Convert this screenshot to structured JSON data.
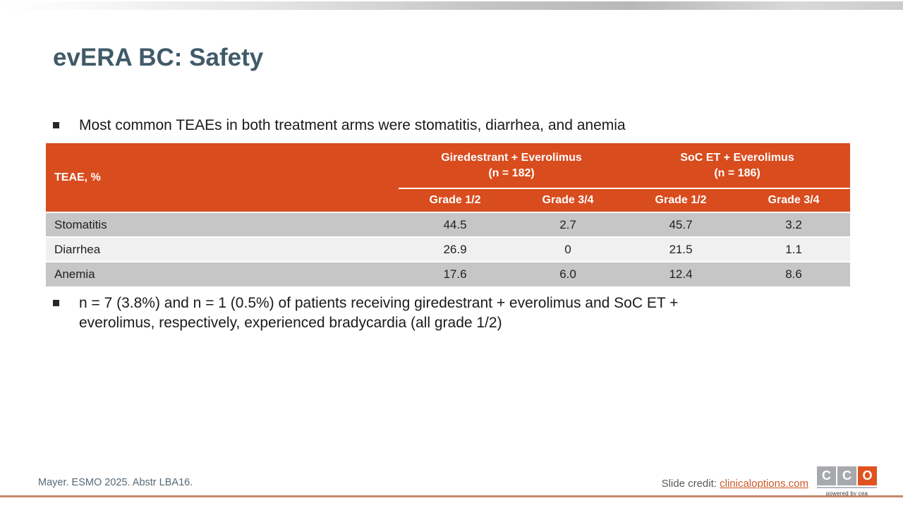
{
  "slide": {
    "title": "evERA BC: Safety",
    "bullets": [
      "Most common TEAEs in both treatment arms were stomatitis, diarrhea, and anemia",
      "n = 7 (3.8%) and n = 1 (0.5%) of patients receiving giredestrant + everolimus and SoC ET + everolimus, respectively, experienced bradycardia (all grade 1/2)"
    ]
  },
  "table": {
    "corner_label": "TEAE, %",
    "groups": [
      {
        "label": "Giredestrant + Everolimus",
        "sublabel": "(n = 182)"
      },
      {
        "label": "SoC ET + Everolimus",
        "sublabel": "(n = 186)"
      }
    ],
    "grade_headers": [
      "Grade 1/2",
      "Grade 3/4",
      "Grade 1/2",
      "Grade 3/4"
    ],
    "rows": [
      {
        "label": "Stomatitis",
        "values": [
          "44.5",
          "2.7",
          "45.7",
          "3.2"
        ]
      },
      {
        "label": "Diarrhea",
        "values": [
          "26.9",
          "0",
          "21.5",
          "1.1"
        ]
      },
      {
        "label": "Anemia",
        "values": [
          "17.6",
          "6.0",
          "12.4",
          "8.6"
        ]
      }
    ]
  },
  "footer": {
    "citation": "Mayer. ESMO 2025. Abstr LBA16.",
    "credit_label": "Slide credit: ",
    "credit_link": "clinicaloptions.com",
    "logo_letters": [
      "C",
      "C",
      "O"
    ],
    "logo_tagline": "powered by cea"
  },
  "colors": {
    "accent_orange": "#D84C1E",
    "logo_orange": "#E0521F",
    "logo_gray": "#A7A9AC",
    "row_gray": "#C6C6C6",
    "row_light": "#F0F0F0",
    "title_color": "#405A68",
    "footer_rule": "#C5886C",
    "citation_color": "#566876",
    "link_color": "#CB5A28"
  }
}
